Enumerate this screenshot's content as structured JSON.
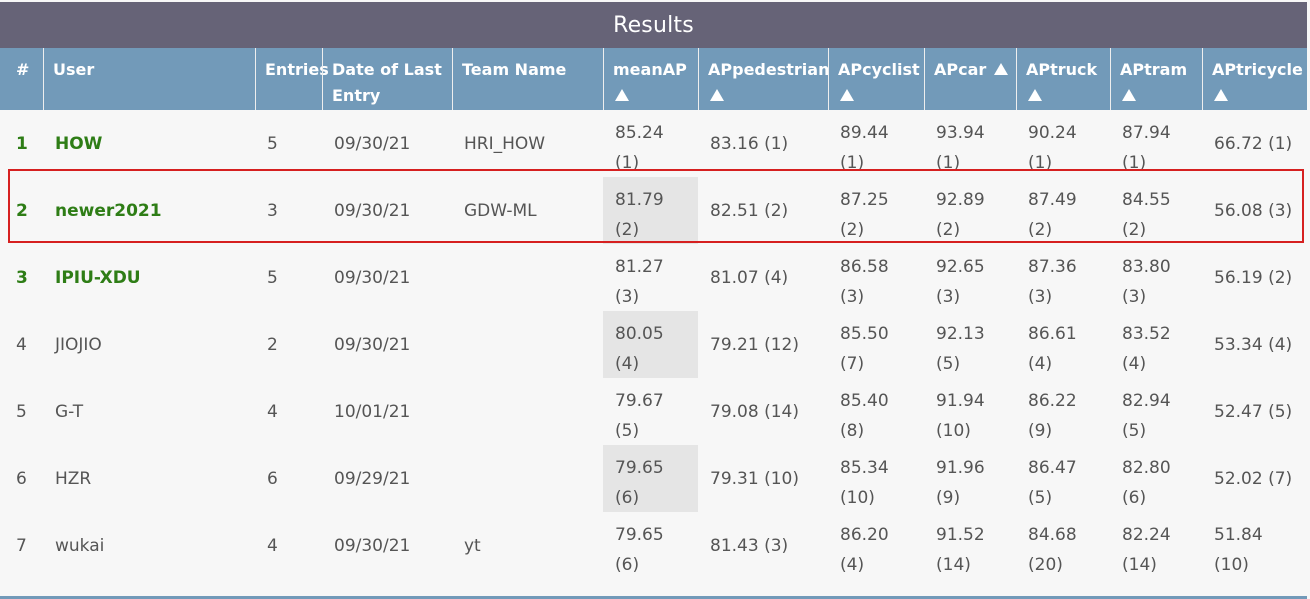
{
  "title": "Results",
  "headers": [
    {
      "label": "#",
      "sort": false
    },
    {
      "label": "User",
      "sort": false
    },
    {
      "label": "Entries",
      "sort": false
    },
    {
      "label": "Date of Last Entry",
      "sort": false
    },
    {
      "label": "Team Name",
      "sort": false
    },
    {
      "label": "meanAP",
      "sort": true
    },
    {
      "label": "APpedestrian",
      "sort": true
    },
    {
      "label": "APcyclist",
      "sort": true
    },
    {
      "label": "APcar",
      "sort": true
    },
    {
      "label": "APtruck",
      "sort": true
    },
    {
      "label": "APtram",
      "sort": true
    },
    {
      "label": "APtricycle",
      "sort": true
    }
  ],
  "rows": [
    {
      "rank": "1",
      "user": "HOW",
      "entries": "5",
      "date": "09/30/21",
      "team": "HRI_HOW",
      "leader": true,
      "meanAP": [
        "85.24",
        "(1)"
      ],
      "ped": "83.16 (1)",
      "cyc": [
        "89.44",
        "(1)"
      ],
      "car": [
        "93.94",
        "(1)"
      ],
      "truck": [
        "90.24",
        "(1)"
      ],
      "tram": [
        "87.94",
        "(1)"
      ],
      "tri": [
        "66.72 (1)",
        ""
      ]
    },
    {
      "rank": "2",
      "user": "newer2021",
      "entries": "3",
      "date": "09/30/21",
      "team": "GDW-ML",
      "leader": true,
      "meanAP": [
        "81.79",
        "(2)"
      ],
      "ped": "82.51 (2)",
      "cyc": [
        "87.25",
        "(2)"
      ],
      "car": [
        "92.89",
        "(2)"
      ],
      "truck": [
        "87.49",
        "(2)"
      ],
      "tram": [
        "84.55",
        "(2)"
      ],
      "tri": [
        "56.08 (3)",
        ""
      ]
    },
    {
      "rank": "3",
      "user": "IPIU-XDU",
      "entries": "5",
      "date": "09/30/21",
      "team": "",
      "leader": true,
      "meanAP": [
        "81.27",
        "(3)"
      ],
      "ped": "81.07 (4)",
      "cyc": [
        "86.58",
        "(3)"
      ],
      "car": [
        "92.65",
        "(3)"
      ],
      "truck": [
        "87.36",
        "(3)"
      ],
      "tram": [
        "83.80",
        "(3)"
      ],
      "tri": [
        "56.19 (2)",
        ""
      ]
    },
    {
      "rank": "4",
      "user": "JIOJIO",
      "entries": "2",
      "date": "09/30/21",
      "team": "",
      "leader": false,
      "meanAP": [
        "80.05",
        "(4)"
      ],
      "ped": "79.21 (12)",
      "cyc": [
        "85.50",
        "(7)"
      ],
      "car": [
        "92.13",
        "(5)"
      ],
      "truck": [
        "86.61",
        "(4)"
      ],
      "tram": [
        "83.52",
        "(4)"
      ],
      "tri": [
        "53.34 (4)",
        ""
      ]
    },
    {
      "rank": "5",
      "user": "G-T",
      "entries": "4",
      "date": "10/01/21",
      "team": "",
      "leader": false,
      "meanAP": [
        "79.67",
        "(5)"
      ],
      "ped": "79.08 (14)",
      "cyc": [
        "85.40",
        "(8)"
      ],
      "car": [
        "91.94",
        "(10)"
      ],
      "truck": [
        "86.22",
        "(9)"
      ],
      "tram": [
        "82.94",
        "(5)"
      ],
      "tri": [
        "52.47 (5)",
        ""
      ]
    },
    {
      "rank": "6",
      "user": "HZR",
      "entries": "6",
      "date": "09/29/21",
      "team": "",
      "leader": false,
      "meanAP": [
        "79.65",
        "(6)"
      ],
      "ped": "79.31 (10)",
      "cyc": [
        "85.34",
        "(10)"
      ],
      "car": [
        "91.96",
        "(9)"
      ],
      "truck": [
        "86.47",
        "(5)"
      ],
      "tram": [
        "82.80",
        "(6)"
      ],
      "tri": [
        "52.02 (7)",
        ""
      ]
    },
    {
      "rank": "7",
      "user": "wukai",
      "entries": "4",
      "date": "09/30/21",
      "team": "yt",
      "leader": false,
      "meanAP": [
        "79.65",
        "(6)"
      ],
      "ped": "81.43 (3)",
      "cyc": [
        "86.20",
        "(4)"
      ],
      "car": [
        "91.52",
        "(14)"
      ],
      "truck": [
        "84.68",
        "(20)"
      ],
      "tram": [
        "82.24",
        "(14)"
      ],
      "tri": [
        "51.84",
        "(10)"
      ]
    }
  ],
  "highlighted_row": "2",
  "colors": {
    "header": "#729ab9",
    "title_bar": "#666377",
    "leader_text": "#2e7d16",
    "highlight_border": "#d62020",
    "shaded_cell": "#e5e5e5"
  }
}
